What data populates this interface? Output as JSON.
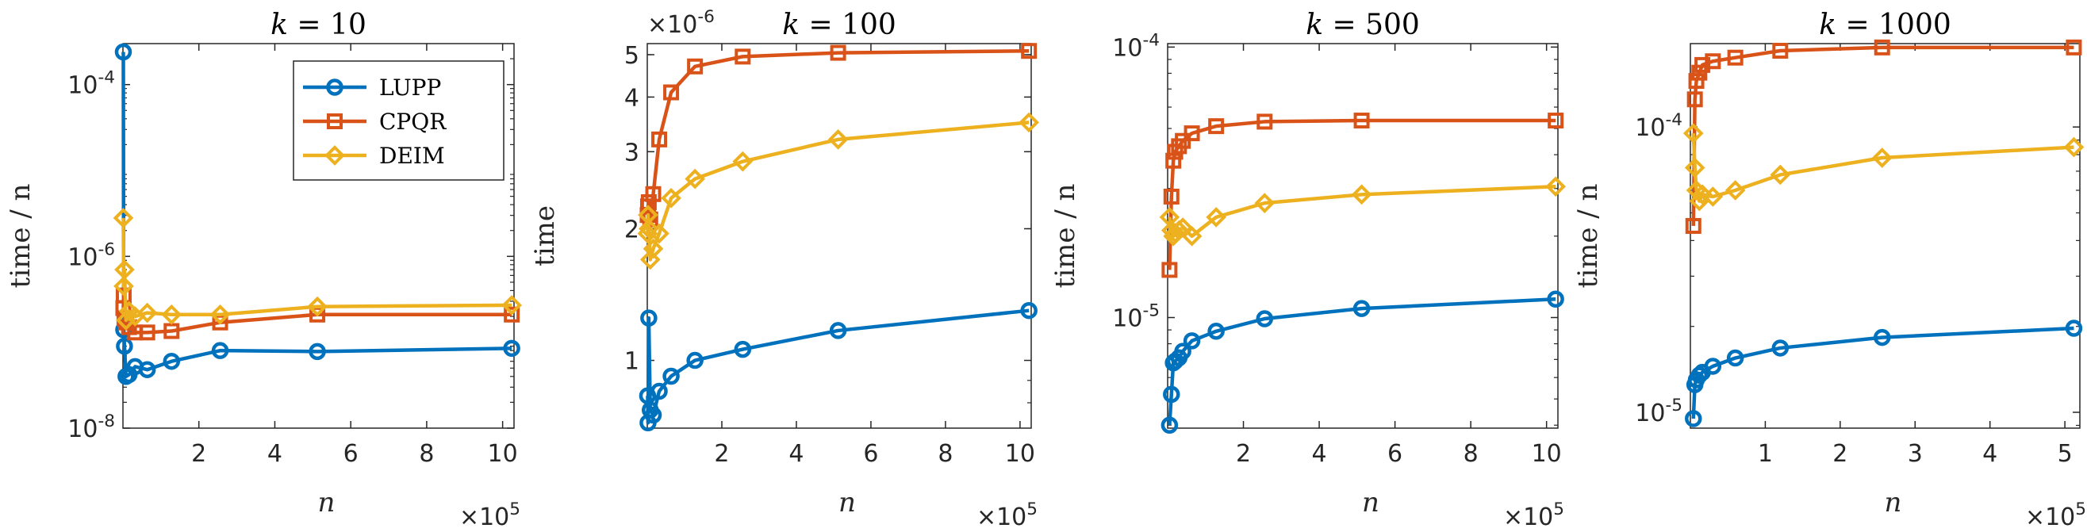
{
  "chart_data": [
    {
      "type": "line",
      "title": "k = 10",
      "xlabel": "n",
      "ylabel": "time / n",
      "x_scale": "linear",
      "y_scale": "log",
      "xlim": [
        0,
        10.3
      ],
      "ylim": [
        1e-08,
        0.0003
      ],
      "x_multiplier": "×10^5",
      "x_ticks": [
        2,
        4,
        6,
        8,
        10
      ],
      "y_ticks": [
        1e-08,
        1e-06,
        0.0001
      ],
      "y_tick_labels": [
        "10^-8",
        "10^-6",
        "10^-4"
      ],
      "legend": "top-right",
      "x": [
        0.01,
        0.02,
        0.04,
        0.08,
        0.16,
        0.32,
        0.64,
        1.28,
        2.56,
        5.12,
        10.24
      ],
      "series": [
        {
          "name": "LUPP",
          "color": "#0072BD",
          "marker": "circle",
          "values": [
            0.00024,
            1.4e-07,
            9e-08,
            4e-08,
            4.2e-08,
            5.2e-08,
            4.8e-08,
            6e-08,
            8e-08,
            7.8e-08,
            8.5e-08
          ]
        },
        {
          "name": "CPQR",
          "color": "#D95319",
          "marker": "square",
          "values": [
            2.5e-07,
            3.5e-07,
            1.9e-07,
            1.7e-07,
            1.5e-07,
            1.3e-07,
            1.3e-07,
            1.35e-07,
            1.7e-07,
            2.1e-07,
            2.1e-07
          ]
        },
        {
          "name": "DEIM",
          "color": "#EDB120",
          "marker": "diamond",
          "values": [
            2.8e-06,
            4.5e-07,
            7e-07,
            1.8e-07,
            2.3e-07,
            2e-07,
            2.2e-07,
            2.1e-07,
            2.1e-07,
            2.6e-07,
            2.7e-07
          ]
        }
      ]
    },
    {
      "type": "line",
      "title": "k = 100",
      "xlabel": "n",
      "ylabel": "time",
      "x_scale": "linear",
      "y_scale": "log",
      "xlim": [
        0,
        10.3
      ],
      "ylim": [
        7e-07,
        5.3e-06
      ],
      "x_multiplier": "×10^5",
      "y_multiplier": "×10^-6",
      "x_ticks": [
        2,
        4,
        6,
        8,
        10
      ],
      "y_ticks": [
        1e-06,
        2e-06,
        3e-06,
        4e-06,
        5e-06
      ],
      "y_tick_labels": [
        "1",
        "2",
        "3",
        "4",
        "5"
      ],
      "x": [
        0.01,
        0.02,
        0.04,
        0.08,
        0.16,
        0.32,
        0.64,
        1.28,
        2.56,
        5.12,
        10.24
      ],
      "series": [
        {
          "name": "LUPP",
          "color": "#0072BD",
          "marker": "circle",
          "values": [
            8.3e-07,
            7.2e-07,
            1.25e-06,
            7.7e-07,
            7.5e-07,
            8.5e-07,
            9.2e-07,
            1e-06,
            1.06e-06,
            1.17e-06,
            1.3e-06
          ]
        },
        {
          "name": "CPQR",
          "color": "#D95319",
          "marker": "square",
          "values": [
            2.15e-06,
            2.25e-06,
            2.3e-06,
            2.1e-06,
            2.4e-06,
            3.2e-06,
            4.1e-06,
            4.7e-06,
            4.95e-06,
            5.05e-06,
            5.1e-06
          ]
        },
        {
          "name": "DEIM",
          "color": "#EDB120",
          "marker": "diamond",
          "values": [
            1.95e-06,
            2.15e-06,
            2e-06,
            1.7e-06,
            1.8e-06,
            1.95e-06,
            2.35e-06,
            2.6e-06,
            2.85e-06,
            3.2e-06,
            3.5e-06
          ]
        }
      ]
    },
    {
      "type": "line",
      "title": "k = 500",
      "xlabel": "n",
      "ylabel": "time / n",
      "x_scale": "linear",
      "y_scale": "log",
      "xlim": [
        0,
        10.3
      ],
      "ylim": [
        3.9e-06,
        0.000103
      ],
      "x_multiplier": "×10^5",
      "x_ticks": [
        2,
        4,
        6,
        8,
        10
      ],
      "y_ticks": [
        1e-05,
        0.0001
      ],
      "y_tick_labels": [
        "10^-5",
        "10^-4"
      ],
      "x": [
        0.05,
        0.1,
        0.15,
        0.2,
        0.3,
        0.4,
        0.64,
        1.28,
        2.56,
        5.12,
        10.24
      ],
      "series": [
        {
          "name": "LUPP",
          "color": "#0072BD",
          "marker": "circle",
          "values": [
            4e-06,
            5.2e-06,
            6.8e-06,
            6.9e-06,
            7.1e-06,
            7.5e-06,
            8.2e-06,
            8.9e-06,
            9.9e-06,
            1.08e-05,
            1.17e-05
          ]
        },
        {
          "name": "CPQR",
          "color": "#D95319",
          "marker": "square",
          "values": [
            1.5e-05,
            2.8e-05,
            3.8e-05,
            4.1e-05,
            4.3e-05,
            4.5e-05,
            4.8e-05,
            5.1e-05,
            5.3e-05,
            5.35e-05,
            5.35e-05
          ]
        },
        {
          "name": "DEIM",
          "color": "#EDB120",
          "marker": "diamond",
          "values": [
            2.35e-05,
            2.1e-05,
            2e-05,
            2.05e-05,
            2.1e-05,
            2.15e-05,
            2e-05,
            2.35e-05,
            2.65e-05,
            2.85e-05,
            3.05e-05
          ]
        }
      ]
    },
    {
      "type": "line",
      "title": "k = 1000",
      "xlabel": "n",
      "ylabel": "time / n",
      "x_scale": "linear",
      "y_scale": "log",
      "xlim": [
        0,
        5.2
      ],
      "ylim": [
        8.8e-06,
        0.000196
      ],
      "x_multiplier": "×10^5",
      "x_ticks": [
        1,
        2,
        3,
        4,
        5
      ],
      "y_ticks": [
        1e-05,
        0.0001
      ],
      "y_tick_labels": [
        "10^-5",
        "10^-4"
      ],
      "x": [
        0.04,
        0.06,
        0.08,
        0.12,
        0.16,
        0.3,
        0.6,
        1.2,
        2.56,
        5.12
      ],
      "series": [
        {
          "name": "LUPP",
          "color": "#0072BD",
          "marker": "circle",
          "values": [
            9.5e-06,
            1.25e-05,
            1.3e-05,
            1.35e-05,
            1.38e-05,
            1.45e-05,
            1.55e-05,
            1.68e-05,
            1.83e-05,
            1.97e-05
          ]
        },
        {
          "name": "CPQR",
          "color": "#D95319",
          "marker": "square",
          "values": [
            4.5e-05,
            0.000125,
            0.000145,
            0.000155,
            0.000165,
            0.00017,
            0.000175,
            0.000185,
            0.00019,
            0.00019
          ]
        },
        {
          "name": "DEIM",
          "color": "#EDB120",
          "marker": "diamond",
          "values": [
            9.5e-05,
            7.2e-05,
            6e-05,
            5.5e-05,
            5.8e-05,
            5.7e-05,
            6e-05,
            6.8e-05,
            7.8e-05,
            8.5e-05
          ]
        }
      ]
    }
  ]
}
